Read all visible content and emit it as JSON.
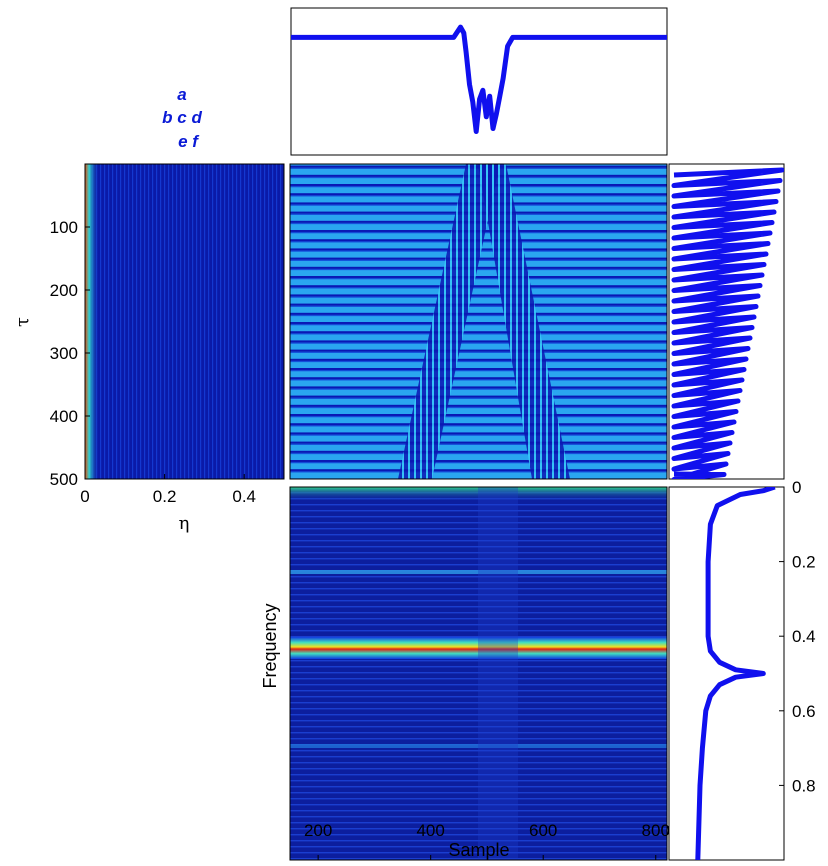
{
  "chart_data": [
    {
      "panel": "top",
      "type": "line",
      "color": "#1010ee",
      "xlim": [
        150,
        820
      ],
      "series": [
        {
          "values": [
            [
              150,
              0.2
            ],
            [
              440,
              0.2
            ],
            [
              452,
              0.13
            ],
            [
              458,
              0.17
            ],
            [
              462,
              0.3
            ],
            [
              468,
              0.52
            ],
            [
              474,
              0.64
            ],
            [
              480,
              0.84
            ],
            [
              486,
              0.62
            ],
            [
              492,
              0.56
            ],
            [
              498,
              0.74
            ],
            [
              504,
              0.6
            ],
            [
              510,
              0.82
            ],
            [
              516,
              0.72
            ],
            [
              522,
              0.6
            ],
            [
              528,
              0.48
            ],
            [
              536,
              0.26
            ],
            [
              545,
              0.2
            ],
            [
              820,
              0.2
            ]
          ]
        }
      ]
    },
    {
      "panel": "left",
      "type": "heatmap",
      "xlabel": "η",
      "ylabel": "τ",
      "xlim": [
        0,
        0.5
      ],
      "ylim": [
        0,
        500
      ],
      "xticks": [
        "0",
        "0.2",
        "0.4"
      ],
      "yticks": [
        "100",
        "200",
        "300",
        "400",
        "500"
      ],
      "colormap": "jet",
      "high_values_near_eta": 0
    },
    {
      "panel": "center",
      "type": "heatmap",
      "colormap": "jet",
      "pattern": "horizontal stripes crossed by two diagonal bands forming an inverted V",
      "apex_sample": 500,
      "band_ends_sample": [
        370,
        630
      ]
    },
    {
      "panel": "right",
      "type": "line",
      "color": "#1010ee",
      "pattern": "zig-zag, amplitude decreasing downward"
    },
    {
      "panel": "bottom",
      "type": "heatmap",
      "xlabel": "Sample",
      "ylabel": "Frequency",
      "xlim": [
        150,
        820
      ],
      "ylim": [
        0,
        1
      ],
      "xticks": [
        "200",
        "400",
        "600",
        "800"
      ],
      "colormap": "jet",
      "peak_frequency": 0.5
    },
    {
      "panel": "bottom-right",
      "type": "line",
      "color": "#1010ee",
      "ylim": [
        0,
        1
      ],
      "yticks": [
        "0",
        "0.2",
        "0.4",
        "0.6",
        "0.8"
      ],
      "series": [
        {
          "values": [
            [
              0.0,
              0.92
            ],
            [
              0.01,
              0.82
            ],
            [
              0.02,
              0.62
            ],
            [
              0.05,
              0.42
            ],
            [
              0.1,
              0.36
            ],
            [
              0.2,
              0.34
            ],
            [
              0.3,
              0.34
            ],
            [
              0.4,
              0.34
            ],
            [
              0.44,
              0.36
            ],
            [
              0.47,
              0.44
            ],
            [
              0.49,
              0.58
            ],
            [
              0.5,
              0.82
            ],
            [
              0.51,
              0.58
            ],
            [
              0.53,
              0.44
            ],
            [
              0.56,
              0.36
            ],
            [
              0.6,
              0.32
            ],
            [
              0.7,
              0.29
            ],
            [
              0.8,
              0.27
            ],
            [
              0.9,
              0.26
            ],
            [
              1.0,
              0.25
            ]
          ]
        }
      ]
    }
  ],
  "legend": {
    "rows": [
      "a",
      "b c d",
      "e f"
    ]
  }
}
